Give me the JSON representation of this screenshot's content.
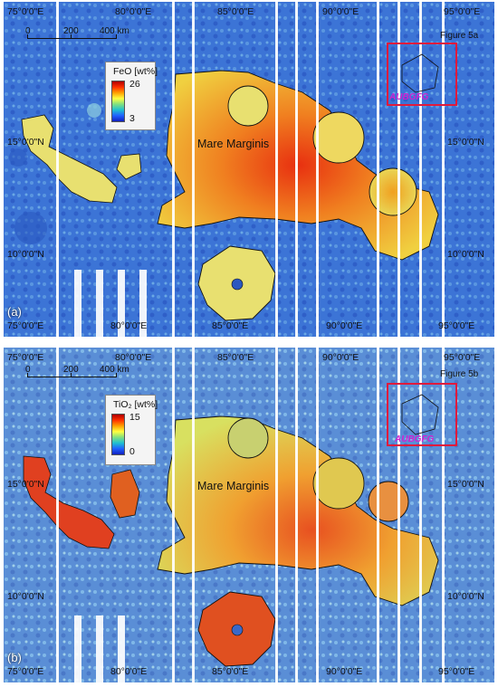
{
  "panels": [
    {
      "letter": "(a)",
      "figure_tag": "Figure 5a",
      "legend": {
        "title": "FeO [wt%]",
        "max": "26",
        "min": "3"
      },
      "mare_label": "Mare Marginis",
      "roi_label": "AUBGFG",
      "lon_ticks_top": [
        "75°0'0\"E",
        "80°0'0\"E",
        "85°0'0\"E",
        "90°0'0\"E",
        "95°0'0\"E"
      ],
      "lon_ticks_bottom": [
        "75°0'0\"E",
        "80°0'0\"E",
        "85°0'0\"E",
        "90°0'0\"E",
        "95°0'0\"E"
      ],
      "lat_ticks": [
        "15°0'0\"N",
        "10°0'0\"N"
      ],
      "scale_bar": {
        "labels": [
          "0",
          "200",
          "400 km"
        ]
      },
      "colors": {
        "background": "#3d78d8",
        "mare_high": "#e83010",
        "mare_mid": "#f0c030",
        "roi": "#e01a3c"
      }
    },
    {
      "letter": "(b)",
      "figure_tag": "Figure 5b",
      "legend": {
        "title": "TiO₂ [wt%]",
        "max": "15",
        "min": "0"
      },
      "mare_label": "Mare Marginis",
      "roi_label": "AUBGFG",
      "lon_ticks_top": [
        "75°0'0\"E",
        "80°0'0\"E",
        "85°0'0\"E",
        "90°0'0\"E",
        "95°0'0\"E"
      ],
      "lon_ticks_bottom": [
        "75°0'0\"E",
        "80°0'0\"E",
        "85°0'0\"E",
        "90°0'0\"E",
        "95°0'0\"E"
      ],
      "lat_ticks": [
        "15°0'0\"N",
        "10°0'0\"N"
      ],
      "scale_bar": {
        "labels": [
          "0",
          "200",
          "400 km"
        ]
      },
      "colors": {
        "background": "#5a90d8",
        "mare_high": "#e04020",
        "mare_mid": "#e8c040",
        "roi": "#e01a3c"
      }
    }
  ]
}
